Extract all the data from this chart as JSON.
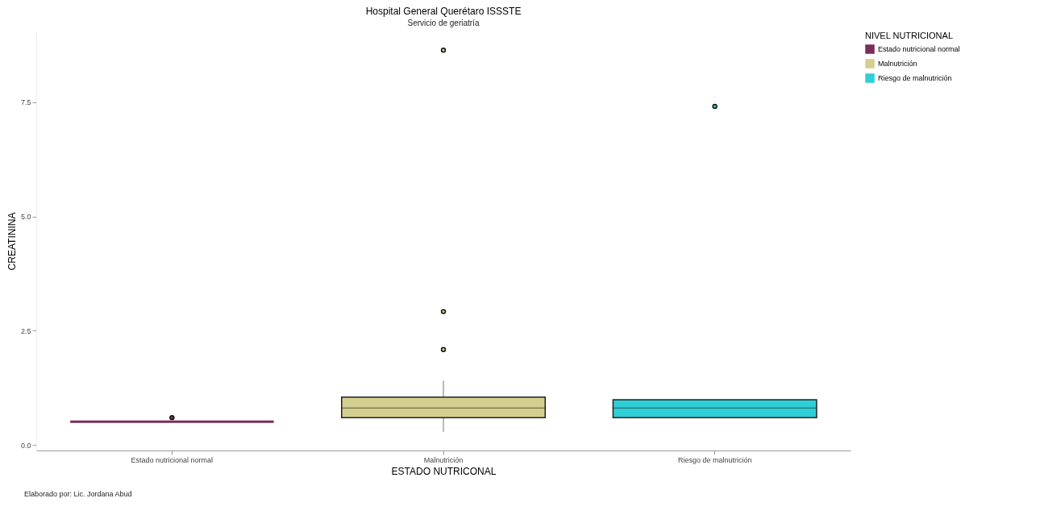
{
  "chart_data": {
    "type": "box",
    "title": "Hospital General Querétaro ISSSTE",
    "subtitle": "Servicio de geriatría",
    "xlabel": "ESTADO NUTRICONAL",
    "ylabel": "CREATININA",
    "legend_title": "NIVEL NUTRICIONAL",
    "categories": [
      "Estado nutricional normal",
      "Malnutrición",
      "Riesgo de malnutrición"
    ],
    "series": [
      {
        "name": "Estado nutricional normal",
        "color": "#7b2d5a",
        "boxes": [
          {
            "low": 0.51,
            "q1": 0.51,
            "median": 0.51,
            "q3": 0.51,
            "high": 0.51,
            "outliers": [
              0.6
            ]
          },
          null,
          null
        ]
      },
      {
        "name": "Malnutrición",
        "color": "#d4cf8e",
        "boxes": [
          null,
          {
            "low": 0.29,
            "q1": 0.6,
            "median": 0.81,
            "q3": 1.05,
            "high": 1.41,
            "outliers": [
              2.09,
              2.92,
              8.64
            ]
          },
          null
        ]
      },
      {
        "name": "Riesgo de malnutrición",
        "color": "#2ecfd6",
        "boxes": [
          null,
          null,
          {
            "low": 0.6,
            "q1": 0.6,
            "median": 0.81,
            "q3": 0.99,
            "high": 0.99,
            "outliers": [
              7.41
            ]
          }
        ]
      }
    ],
    "ylim": [
      -0.12,
      9.05
    ],
    "yticks": [
      {
        "value": 0,
        "label": "0.0"
      },
      {
        "value": 2.5,
        "label": "2.5"
      },
      {
        "value": 5,
        "label": "5.0"
      },
      {
        "value": 7.5,
        "label": "7.5"
      }
    ],
    "grid": false,
    "legend": "right",
    "annotations": [
      "Elaborado por: Lic. Jordana Abud"
    ]
  }
}
